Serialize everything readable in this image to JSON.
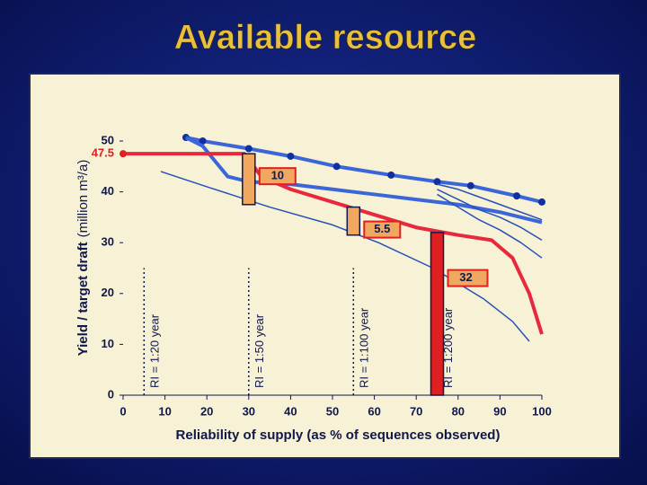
{
  "chart_data": {
    "type": "line",
    "title": "Available resource",
    "x_label": "Reliability of supply (as % of sequences observed)",
    "y_label": "Yield / target draft",
    "y_label_units": "(million m³/a)",
    "xlim": [
      0,
      100
    ],
    "xticks": [
      0,
      10,
      20,
      30,
      40,
      50,
      60,
      70,
      80,
      90,
      100
    ],
    "ylim": [
      0,
      50
    ],
    "yticks": [
      0,
      10,
      20,
      30,
      40,
      50
    ],
    "target": {
      "value": 47.5,
      "color": "#e02020"
    },
    "series": [
      {
        "color": "#3a66d8",
        "width": 4,
        "markers": true,
        "x": [
          15,
          19,
          30,
          40,
          51,
          64,
          75,
          83,
          94,
          100
        ],
        "values": [
          50.7,
          50,
          48.5,
          47,
          45,
          43.3,
          42,
          41.2,
          39.2,
          38
        ]
      },
      {
        "color": "#3a66d8",
        "width": 4,
        "markers": false,
        "x": [
          15,
          19,
          22,
          25,
          30,
          40,
          50,
          60,
          70,
          80,
          90,
          100
        ],
        "values": [
          50.7,
          49,
          46,
          43,
          42,
          41.5,
          40.5,
          39.5,
          38.5,
          37.5,
          36,
          34
        ]
      },
      {
        "color": "#2850b8",
        "width": 1.5,
        "markers": false,
        "x": [
          75,
          80,
          85,
          90,
          95,
          100
        ],
        "values": [
          41.5,
          40.5,
          39,
          37.5,
          36,
          34.5
        ]
      },
      {
        "color": "#2850b8",
        "width": 1.5,
        "markers": false,
        "x": [
          75,
          80,
          85,
          90,
          95,
          100
        ],
        "values": [
          40.5,
          38.5,
          36.5,
          35,
          33,
          30.5
        ]
      },
      {
        "color": "#2850b8",
        "width": 1.5,
        "markers": false,
        "x": [
          75,
          80,
          85,
          90,
          95,
          100
        ],
        "values": [
          39.5,
          37,
          34.5,
          32.5,
          30,
          27
        ]
      },
      {
        "color": "#2850b8",
        "width": 1.5,
        "markers": false,
        "x": [
          9,
          20,
          35,
          50,
          61,
          74,
          86,
          93,
          97
        ],
        "values": [
          44,
          41,
          37,
          33.5,
          30,
          25,
          19,
          14.5,
          10.6
        ]
      },
      {
        "color": "#e8283c",
        "width": 4,
        "markers": false,
        "x": [
          0,
          29,
          33,
          40,
          50,
          60,
          70,
          80,
          88,
          93,
          97,
          100
        ],
        "values": [
          47.5,
          47.5,
          43,
          40.5,
          38,
          35.5,
          33,
          31.5,
          30.5,
          27,
          20,
          12
        ]
      }
    ],
    "return_periods": [
      {
        "label": "RI = 1:20 year",
        "x": 5
      },
      {
        "label": "RI = 1:50 year",
        "x": 30
      },
      {
        "label": "RI = 1:100 year",
        "x": 55
      },
      {
        "label": "RI = 1:200 year",
        "x": 75
      }
    ],
    "boxes": [
      {
        "x": 30,
        "top": 47.5,
        "value": 10,
        "color": "#f0a860"
      },
      {
        "x": 55,
        "top": 37,
        "value": 5.5,
        "color": "#f0a860"
      },
      {
        "x": 75,
        "top": 32,
        "value": 32,
        "color": "#e02020"
      }
    ]
  }
}
